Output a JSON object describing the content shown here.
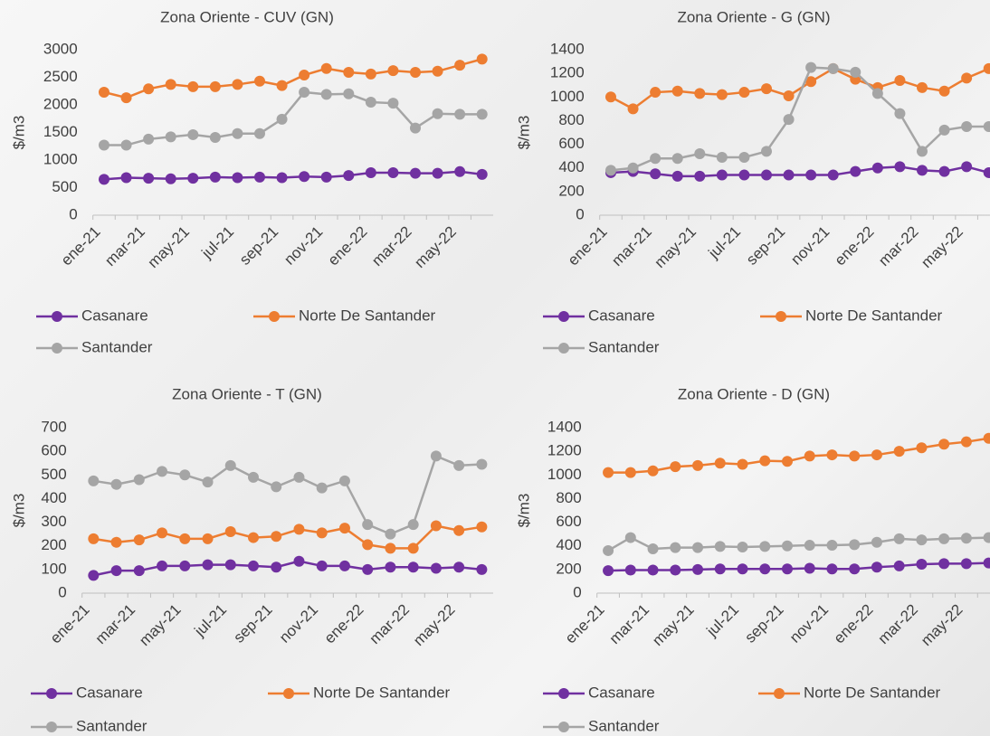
{
  "chart_data": [
    {
      "type": "line",
      "title": "Zona Oriente - CUV (GN)",
      "y_label": "$/m3",
      "categories": [
        "ene-21",
        null,
        "mar-21",
        null,
        "may-21",
        null,
        "jul-21",
        null,
        "sep-21",
        null,
        "nov-21",
        null,
        "ene-22",
        null,
        "mar-22",
        null,
        "may-22",
        null
      ],
      "ylim": [
        0,
        3000
      ],
      "yticks": [
        0,
        500,
        1000,
        1500,
        2000,
        2500,
        3000
      ],
      "grid": false,
      "legend": "bottom",
      "series": [
        {
          "name": "Casanare",
          "color": "#7030a0",
          "values": [
            650,
            680,
            670,
            660,
            670,
            690,
            680,
            690,
            680,
            700,
            690,
            720,
            770,
            770,
            760,
            760,
            790,
            740
          ]
        },
        {
          "name": "Norte De Santander",
          "color": "#ed7d31",
          "values": [
            2230,
            2130,
            2290,
            2370,
            2330,
            2330,
            2370,
            2430,
            2350,
            2540,
            2660,
            2590,
            2560,
            2620,
            2590,
            2610,
            2720,
            2830
          ]
        },
        {
          "name": "Santander",
          "color": "#a5a5a5",
          "values": [
            1270,
            1270,
            1380,
            1420,
            1460,
            1410,
            1480,
            1480,
            1740,
            2230,
            2190,
            2200,
            2050,
            2030,
            1580,
            1840,
            1830,
            1830
          ]
        }
      ]
    },
    {
      "type": "line",
      "title": "Zona Oriente - G (GN)",
      "y_label": "$/m3",
      "categories": [
        "ene-21",
        null,
        "mar-21",
        null,
        "may-21",
        null,
        "jul-21",
        null,
        "sep-21",
        null,
        "nov-21",
        null,
        "ene-22",
        null,
        "mar-22",
        null,
        "may-22",
        null
      ],
      "ylim": [
        0,
        1400
      ],
      "yticks": [
        0,
        200,
        400,
        600,
        800,
        1000,
        1200,
        1400
      ],
      "grid": false,
      "legend": "bottom",
      "series": [
        {
          "name": "Casanare",
          "color": "#7030a0",
          "values": [
            360,
            370,
            350,
            330,
            330,
            340,
            340,
            340,
            340,
            340,
            340,
            370,
            400,
            410,
            380,
            370,
            410,
            360
          ]
        },
        {
          "name": "Norte De Santander",
          "color": "#ed7d31",
          "values": [
            1000,
            900,
            1040,
            1050,
            1030,
            1020,
            1040,
            1070,
            1010,
            1130,
            1240,
            1150,
            1080,
            1140,
            1080,
            1050,
            1160,
            1240
          ]
        },
        {
          "name": "Santander",
          "color": "#a5a5a5",
          "values": [
            380,
            400,
            480,
            480,
            520,
            490,
            490,
            540,
            810,
            1250,
            1240,
            1210,
            1030,
            860,
            540,
            720,
            750,
            750
          ]
        }
      ]
    },
    {
      "type": "line",
      "title": "Zona Oriente - T (GN)",
      "y_label": "$/m3",
      "categories": [
        "ene-21",
        null,
        "mar-21",
        null,
        "may-21",
        null,
        "jul-21",
        null,
        "sep-21",
        null,
        "nov-21",
        null,
        "ene-22",
        null,
        "mar-22",
        null,
        "may-22",
        null
      ],
      "ylim": [
        0,
        700
      ],
      "yticks": [
        0,
        100,
        200,
        300,
        400,
        500,
        600,
        700
      ],
      "grid": false,
      "legend": "bottom",
      "series": [
        {
          "name": "Casanare",
          "color": "#7030a0",
          "values": [
            75,
            95,
            95,
            115,
            115,
            120,
            120,
            115,
            110,
            135,
            115,
            115,
            100,
            110,
            110,
            105,
            110,
            100
          ]
        },
        {
          "name": "Norte De Santander",
          "color": "#ed7d31",
          "values": [
            230,
            215,
            225,
            255,
            230,
            230,
            260,
            235,
            240,
            270,
            255,
            275,
            205,
            190,
            190,
            285,
            265,
            280
          ]
        },
        {
          "name": "Santander",
          "color": "#a5a5a5",
          "values": [
            475,
            460,
            480,
            515,
            500,
            470,
            540,
            490,
            450,
            490,
            445,
            475,
            290,
            250,
            290,
            580,
            540,
            545
          ]
        }
      ]
    },
    {
      "type": "line",
      "title": "Zona Oriente - D (GN)",
      "y_label": "$/m3",
      "categories": [
        "ene-21",
        null,
        "mar-21",
        null,
        "may-21",
        null,
        "jul-21",
        null,
        "sep-21",
        null,
        "nov-21",
        null,
        "ene-22",
        null,
        "mar-22",
        null,
        "may-22",
        null
      ],
      "ylim": [
        0,
        1400
      ],
      "yticks": [
        0,
        200,
        400,
        600,
        800,
        1000,
        1200,
        1400
      ],
      "grid": false,
      "legend": "bottom",
      "series": [
        {
          "name": "Casanare",
          "color": "#7030a0",
          "values": [
            190,
            195,
            195,
            195,
            200,
            205,
            205,
            205,
            205,
            210,
            205,
            205,
            220,
            230,
            245,
            250,
            250,
            255
          ]
        },
        {
          "name": "Norte De Santander",
          "color": "#ed7d31",
          "values": [
            1020,
            1020,
            1035,
            1070,
            1080,
            1100,
            1090,
            1120,
            1115,
            1160,
            1170,
            1160,
            1170,
            1200,
            1230,
            1260,
            1280,
            1310
          ]
        },
        {
          "name": "Santander",
          "color": "#a5a5a5",
          "values": [
            360,
            470,
            375,
            385,
            385,
            395,
            390,
            395,
            400,
            405,
            405,
            410,
            430,
            460,
            450,
            460,
            465,
            470
          ]
        }
      ]
    }
  ]
}
